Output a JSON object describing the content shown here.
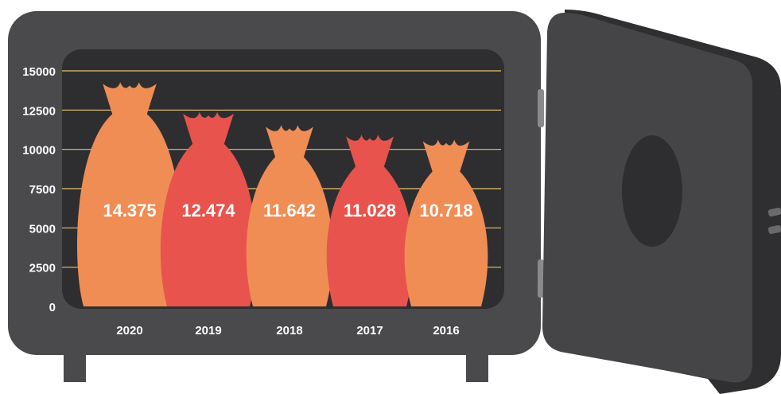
{
  "chart_data": {
    "type": "bar",
    "categories": [
      "2020",
      "2019",
      "2018",
      "2017",
      "2016"
    ],
    "values": [
      14375,
      12474,
      11642,
      11028,
      10718
    ],
    "data_labels": [
      "14.375",
      "12.474",
      "11.642",
      "11.028",
      "10.718"
    ],
    "y_ticks": [
      "0",
      "2500",
      "5000",
      "7500",
      "10000",
      "12500",
      "15000"
    ],
    "ylim": [
      0,
      15000
    ],
    "title": "",
    "xlabel": "",
    "ylabel": "",
    "grid": true,
    "legend": "none"
  },
  "colors": {
    "safe_body": "#4a4a4c",
    "safe_interior": "#2e2e30",
    "door_face": "#454547",
    "door_side": "#2f2f31",
    "gridline": "#e8c46a",
    "bag_orange": "#f08d55",
    "bag_red": "#e8534d",
    "text_light": "#ffffff",
    "hinge": "#8a8a8c"
  },
  "icons": {
    "safe": "safe-icon",
    "door": "safe-door-icon",
    "dial": "dial-icon"
  }
}
